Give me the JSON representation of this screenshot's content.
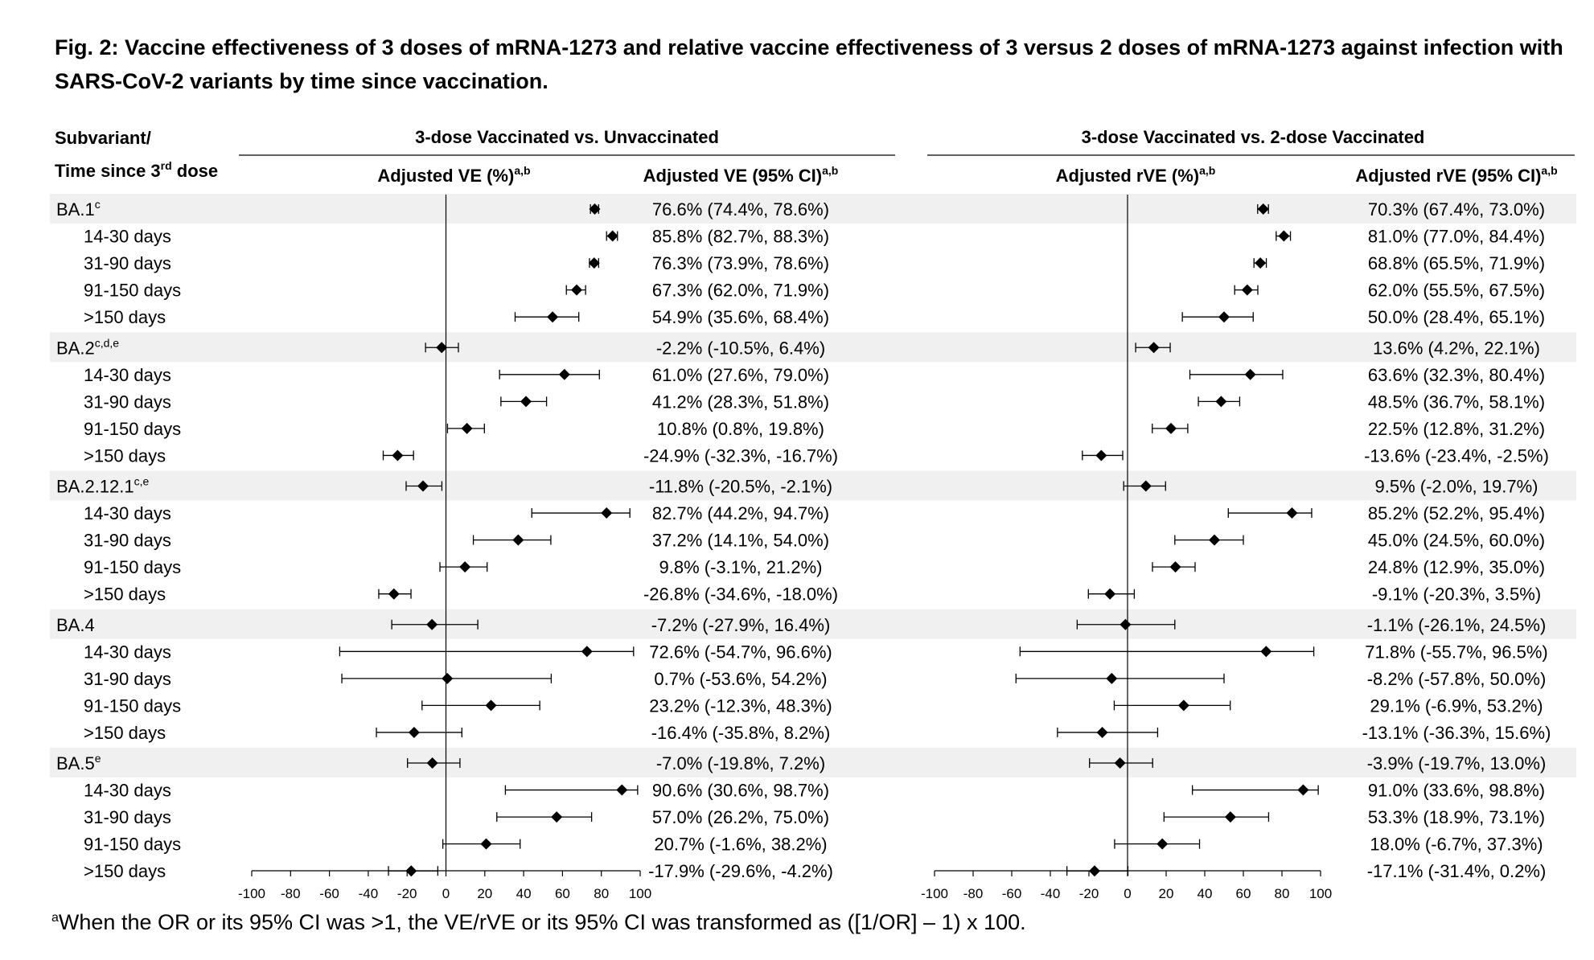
{
  "title": "Fig. 2: Vaccine effectiveness of 3 doses of mRNA-1273 and relative vaccine effectiveness of 3 versus 2 doses of mRNA-1273 against infection with SARS-CoV-2 variants by time since vaccination.",
  "footnote": {
    "mark": "a",
    "text": "When the OR or its 95% CI was >1, the VE/rVE or its 95% CI was transformed as ([1/OR] – 1) x 100."
  },
  "row_header": {
    "line1": "Subvariant/",
    "line2_pre": "Time since 3",
    "line2_sup": "rd",
    "line2_post": " dose"
  },
  "chart_data": {
    "type": "forest",
    "panels": [
      {
        "group_title": "3-dose Vaccinated vs. Unvaccinated",
        "plot_label": "Adjusted VE (%)",
        "plot_label_sup": "a,b",
        "ci_label": "Adjusted VE (95% CI)",
        "ci_label_sup": "a,b",
        "xlim": [
          -100,
          100
        ],
        "xticks": [
          -100,
          -80,
          -60,
          -40,
          -20,
          0,
          20,
          40,
          60,
          80,
          100
        ]
      },
      {
        "group_title": "3-dose Vaccinated vs. 2-dose Vaccinated",
        "plot_label": "Adjusted rVE (%)",
        "plot_label_sup": "a,b",
        "ci_label": "Adjusted rVE (95% CI)",
        "ci_label_sup": "a,b",
        "xlim": [
          -100,
          100
        ],
        "xticks": [
          -100,
          -80,
          -60,
          -40,
          -20,
          0,
          20,
          40,
          60,
          80,
          100
        ]
      }
    ],
    "rows": [
      {
        "label": "BA.1",
        "sup": "c",
        "group": true,
        "ve": [
          76.6,
          74.4,
          78.6
        ],
        "ve_text": "76.6% (74.4%, 78.6%)",
        "rve": [
          70.3,
          67.4,
          73.0
        ],
        "rve_text": "70.3% (67.4%, 73.0%)"
      },
      {
        "label": "14-30 days",
        "group": false,
        "ve": [
          85.8,
          82.7,
          88.3
        ],
        "ve_text": "85.8% (82.7%, 88.3%)",
        "rve": [
          81.0,
          77.0,
          84.4
        ],
        "rve_text": "81.0% (77.0%, 84.4%)"
      },
      {
        "label": "31-90 days",
        "group": false,
        "ve": [
          76.3,
          73.9,
          78.6
        ],
        "ve_text": "76.3% (73.9%, 78.6%)",
        "rve": [
          68.8,
          65.5,
          71.9
        ],
        "rve_text": "68.8% (65.5%, 71.9%)"
      },
      {
        "label": "91-150 days",
        "group": false,
        "ve": [
          67.3,
          62.0,
          71.9
        ],
        "ve_text": "67.3% (62.0%, 71.9%)",
        "rve": [
          62.0,
          55.5,
          67.5
        ],
        "rve_text": "62.0% (55.5%, 67.5%)"
      },
      {
        "label": ">150 days",
        "group": false,
        "ve": [
          54.9,
          35.6,
          68.4
        ],
        "ve_text": "54.9% (35.6%, 68.4%)",
        "rve": [
          50.0,
          28.4,
          65.1
        ],
        "rve_text": "50.0% (28.4%, 65.1%)"
      },
      {
        "label": "BA.2",
        "sup": "c,d,e",
        "group": true,
        "ve": [
          -2.2,
          -10.5,
          6.4
        ],
        "ve_text": "-2.2% (-10.5%, 6.4%)",
        "rve": [
          13.6,
          4.2,
          22.1
        ],
        "rve_text": "13.6% (4.2%, 22.1%)"
      },
      {
        "label": "14-30 days",
        "group": false,
        "ve": [
          61.0,
          27.6,
          79.0
        ],
        "ve_text": "61.0% (27.6%, 79.0%)",
        "rve": [
          63.6,
          32.3,
          80.4
        ],
        "rve_text": "63.6% (32.3%, 80.4%)"
      },
      {
        "label": "31-90 days",
        "group": false,
        "ve": [
          41.2,
          28.3,
          51.8
        ],
        "ve_text": "41.2% (28.3%, 51.8%)",
        "rve": [
          48.5,
          36.7,
          58.1
        ],
        "rve_text": "48.5% (36.7%, 58.1%)"
      },
      {
        "label": "91-150 days",
        "group": false,
        "ve": [
          10.8,
          0.8,
          19.8
        ],
        "ve_text": "10.8% (0.8%, 19.8%)",
        "rve": [
          22.5,
          12.8,
          31.2
        ],
        "rve_text": "22.5% (12.8%, 31.2%)"
      },
      {
        "label": ">150 days",
        "group": false,
        "ve": [
          -24.9,
          -32.3,
          -16.7
        ],
        "ve_text": "-24.9% (-32.3%, -16.7%)",
        "rve": [
          -13.6,
          -23.4,
          -2.5
        ],
        "rve_text": "-13.6% (-23.4%, -2.5%)"
      },
      {
        "label": "BA.2.12.1",
        "sup": "c,e",
        "group": true,
        "ve": [
          -11.8,
          -20.5,
          -2.1
        ],
        "ve_text": "-11.8% (-20.5%, -2.1%)",
        "rve": [
          9.5,
          -2.0,
          19.7
        ],
        "rve_text": "9.5% (-2.0%, 19.7%)"
      },
      {
        "label": "14-30 days",
        "group": false,
        "ve": [
          82.7,
          44.2,
          94.7
        ],
        "ve_text": "82.7% (44.2%, 94.7%)",
        "rve": [
          85.2,
          52.2,
          95.4
        ],
        "rve_text": "85.2% (52.2%, 95.4%)"
      },
      {
        "label": "31-90 days",
        "group": false,
        "ve": [
          37.2,
          14.1,
          54.0
        ],
        "ve_text": "37.2% (14.1%, 54.0%)",
        "rve": [
          45.0,
          24.5,
          60.0
        ],
        "rve_text": "45.0% (24.5%, 60.0%)"
      },
      {
        "label": "91-150 days",
        "group": false,
        "ve": [
          9.8,
          -3.1,
          21.2
        ],
        "ve_text": "9.8% (-3.1%, 21.2%)",
        "rve": [
          24.8,
          12.9,
          35.0
        ],
        "rve_text": "24.8% (12.9%, 35.0%)"
      },
      {
        "label": ">150 days",
        "group": false,
        "ve": [
          -26.8,
          -34.6,
          -18.0
        ],
        "ve_text": "-26.8% (-34.6%, -18.0%)",
        "rve": [
          -9.1,
          -20.3,
          3.5
        ],
        "rve_text": "-9.1% (-20.3%, 3.5%)"
      },
      {
        "label": "BA.4",
        "group": true,
        "ve": [
          -7.2,
          -27.9,
          16.4
        ],
        "ve_text": "-7.2% (-27.9%, 16.4%)",
        "rve": [
          -1.1,
          -26.1,
          24.5
        ],
        "rve_text": "-1.1% (-26.1%, 24.5%)"
      },
      {
        "label": "14-30 days",
        "group": false,
        "ve": [
          72.6,
          -54.7,
          96.6
        ],
        "ve_text": "72.6% (-54.7%, 96.6%)",
        "rve": [
          71.8,
          -55.7,
          96.5
        ],
        "rve_text": "71.8% (-55.7%, 96.5%)"
      },
      {
        "label": "31-90 days",
        "group": false,
        "ve": [
          0.7,
          -53.6,
          54.2
        ],
        "ve_text": "0.7% (-53.6%, 54.2%)",
        "rve": [
          -8.2,
          -57.8,
          50.0
        ],
        "rve_text": "-8.2% (-57.8%, 50.0%)"
      },
      {
        "label": "91-150 days",
        "group": false,
        "ve": [
          23.2,
          -12.3,
          48.3
        ],
        "ve_text": "23.2% (-12.3%, 48.3%)",
        "rve": [
          29.1,
          -6.9,
          53.2
        ],
        "rve_text": "29.1% (-6.9%, 53.2%)"
      },
      {
        "label": ">150 days",
        "group": false,
        "ve": [
          -16.4,
          -35.8,
          8.2
        ],
        "ve_text": "-16.4% (-35.8%, 8.2%)",
        "rve": [
          -13.1,
          -36.3,
          15.6
        ],
        "rve_text": "-13.1% (-36.3%, 15.6%)"
      },
      {
        "label": "BA.5",
        "sup": "e",
        "group": true,
        "ve": [
          -7.0,
          -19.8,
          7.2
        ],
        "ve_text": "-7.0% (-19.8%, 7.2%)",
        "rve": [
          -3.9,
          -19.7,
          13.0
        ],
        "rve_text": "-3.9% (-19.7%, 13.0%)"
      },
      {
        "label": "14-30 days",
        "group": false,
        "ve": [
          90.6,
          30.6,
          98.7
        ],
        "ve_text": "90.6% (30.6%, 98.7%)",
        "rve": [
          91.0,
          33.6,
          98.8
        ],
        "rve_text": "91.0% (33.6%, 98.8%)"
      },
      {
        "label": "31-90 days",
        "group": false,
        "ve": [
          57.0,
          26.2,
          75.0
        ],
        "ve_text": "57.0% (26.2%, 75.0%)",
        "rve": [
          53.3,
          18.9,
          73.1
        ],
        "rve_text": "53.3% (18.9%, 73.1%)"
      },
      {
        "label": "91-150 days",
        "group": false,
        "ve": [
          20.7,
          -1.6,
          38.2
        ],
        "ve_text": "20.7% (-1.6%, 38.2%)",
        "rve": [
          18.0,
          -6.7,
          37.3
        ],
        "rve_text": "18.0% (-6.7%, 37.3%)"
      },
      {
        "label": ">150 days",
        "group": false,
        "ve": [
          -17.9,
          -29.6,
          -4.2
        ],
        "ve_text": "-17.9% (-29.6%, -4.2%)",
        "rve": [
          -17.1,
          -31.4,
          0.2
        ],
        "rve_text": "-17.1% (-31.4%, 0.2%)"
      }
    ],
    "colors": {
      "group_band": "#f0f0f0",
      "marker": "#000000"
    }
  }
}
